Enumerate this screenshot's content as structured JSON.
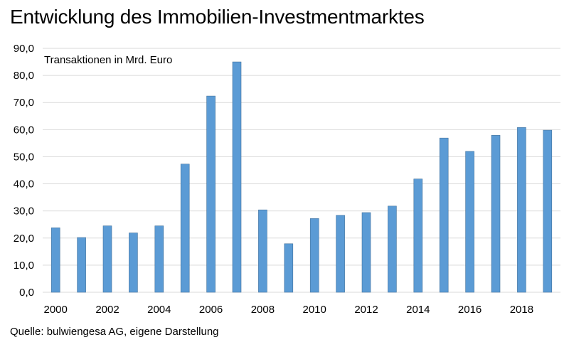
{
  "chart_data": {
    "type": "bar",
    "title": "Entwicklung des Immobilien-Investmentmarktes",
    "subtitle": "Transaktionen in Mrd. Euro",
    "xlabel": "",
    "ylabel": "",
    "categories": [
      "2000",
      "2001",
      "2002",
      "2003",
      "2004",
      "2005",
      "2006",
      "2007",
      "2008",
      "2009",
      "2010",
      "2011",
      "2012",
      "2013",
      "2014",
      "2015",
      "2016",
      "2017",
      "2018",
      "2019"
    ],
    "x_tick_labels": [
      "2000",
      "2002",
      "2004",
      "2006",
      "2008",
      "2010",
      "2012",
      "2014",
      "2016",
      "2018"
    ],
    "values": [
      23.8,
      20.2,
      24.5,
      21.9,
      24.5,
      47.3,
      72.4,
      85.0,
      30.4,
      17.9,
      27.2,
      28.4,
      29.4,
      31.8,
      41.8,
      56.9,
      52.0,
      57.9,
      60.8,
      59.8
    ],
    "y_tick_labels": [
      "0,0",
      "10,0",
      "20,0",
      "30,0",
      "40,0",
      "50,0",
      "60,0",
      "70,0",
      "80,0",
      "90,0"
    ],
    "ylim": [
      0,
      90
    ],
    "grid": true,
    "legend": false,
    "bar_color": "#5b9bd5",
    "bar_edge_color": "#41719c",
    "grid_color": "#d9d9d9"
  },
  "footer": {
    "source": "Quelle: bulwiengesa AG, eigene Darstellung"
  }
}
